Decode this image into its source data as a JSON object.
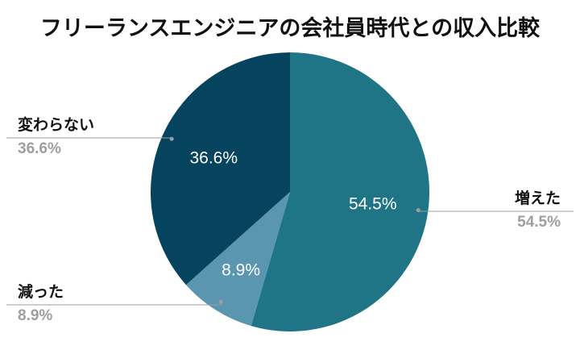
{
  "chart_data": {
    "type": "pie",
    "title": "フリーランスエンジニアの会社員時代との収入比較",
    "slices": [
      {
        "name": "増えた",
        "value": 54.5,
        "label": "54.5%",
        "color": "#1f7585"
      },
      {
        "name": "減った",
        "value": 8.9,
        "label": "8.9%",
        "color": "#5b96b0"
      },
      {
        "name": "変わらない",
        "value": 36.6,
        "label": "36.6%",
        "color": "#05435f"
      }
    ],
    "start_angle_deg": 0,
    "direction": "clockwise",
    "legend": "outside-labels-with-leader-lines"
  }
}
